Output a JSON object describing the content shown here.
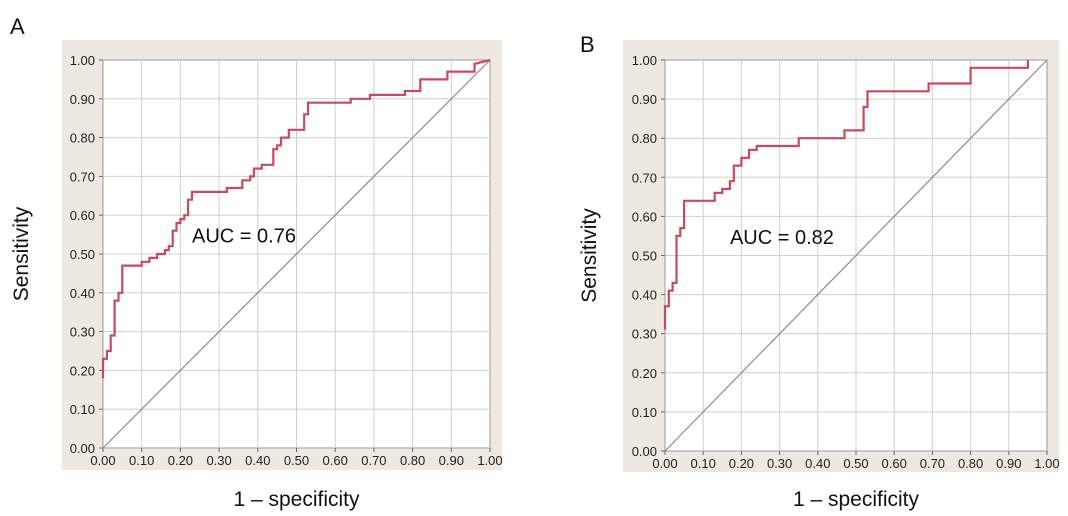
{
  "chart_data": [
    {
      "panel": "A",
      "type": "line",
      "xlabel": "1 – specificity",
      "ylabel": "Sensitivity",
      "xlim": [
        0,
        1
      ],
      "ylim": [
        0,
        1
      ],
      "x_ticks": [
        "0.00",
        "0.10",
        "0.20",
        "0.30",
        "0.40",
        "0.50",
        "0.60",
        "0.70",
        "0.80",
        "0.90",
        "1.00"
      ],
      "y_ticks": [
        "0.00",
        "0.10",
        "0.20",
        "0.30",
        "0.40",
        "0.50",
        "0.60",
        "0.70",
        "0.80",
        "0.90",
        "1.00"
      ],
      "annotation": "AUC = 0.76",
      "annotation_pos": [
        0.23,
        0.53
      ],
      "grid": true,
      "colors": {
        "roc": "#c94a5c",
        "diagonal": "#8c8c8c",
        "plot_bg": "#ffffff",
        "frame_bg": "#ede9e1",
        "grid": "#cfcfcf"
      },
      "series": [
        {
          "x": [
            0.0,
            0.0,
            0.01,
            0.01,
            0.02,
            0.02,
            0.03,
            0.03,
            0.04,
            0.04,
            0.05,
            0.05,
            0.06,
            0.06,
            0.1,
            0.1,
            0.12,
            0.12,
            0.14,
            0.14,
            0.16,
            0.16,
            0.17,
            0.17,
            0.18,
            0.18,
            0.19,
            0.19,
            0.2,
            0.2,
            0.21,
            0.21,
            0.22,
            0.22,
            0.23,
            0.23,
            0.26,
            0.26,
            0.32,
            0.32,
            0.36,
            0.36,
            0.38,
            0.38,
            0.39,
            0.39,
            0.41,
            0.41,
            0.44,
            0.44,
            0.45,
            0.45,
            0.46,
            0.46,
            0.48,
            0.48,
            0.52,
            0.52,
            0.53,
            0.53,
            0.64,
            0.64,
            0.69,
            0.69,
            0.78,
            0.78,
            0.82,
            0.82,
            0.89,
            0.89,
            0.96,
            0.96,
            1.0
          ],
          "y": [
            0.18,
            0.23,
            0.23,
            0.25,
            0.25,
            0.29,
            0.29,
            0.38,
            0.38,
            0.4,
            0.4,
            0.47,
            0.47,
            0.47,
            0.47,
            0.48,
            0.48,
            0.49,
            0.49,
            0.5,
            0.5,
            0.51,
            0.51,
            0.52,
            0.52,
            0.56,
            0.56,
            0.58,
            0.58,
            0.59,
            0.59,
            0.6,
            0.6,
            0.64,
            0.64,
            0.66,
            0.66,
            0.66,
            0.66,
            0.67,
            0.67,
            0.69,
            0.69,
            0.7,
            0.7,
            0.72,
            0.72,
            0.73,
            0.73,
            0.77,
            0.77,
            0.78,
            0.78,
            0.8,
            0.8,
            0.82,
            0.82,
            0.86,
            0.86,
            0.89,
            0.89,
            0.9,
            0.9,
            0.91,
            0.91,
            0.92,
            0.92,
            0.95,
            0.95,
            0.97,
            0.97,
            0.99,
            1.0
          ]
        }
      ]
    },
    {
      "panel": "B",
      "type": "line",
      "xlabel": "1 – specificity",
      "ylabel": "Sensitivity",
      "xlim": [
        0,
        1
      ],
      "ylim": [
        0,
        1
      ],
      "x_ticks": [
        "0.00",
        "0.10",
        "0.20",
        "0.30",
        "0.40",
        "0.50",
        "0.60",
        "0.70",
        "0.80",
        "0.90",
        "1.00"
      ],
      "y_ticks": [
        "0.00",
        "0.10",
        "0.20",
        "0.30",
        "0.40",
        "0.50",
        "0.60",
        "0.70",
        "0.80",
        "0.90",
        "1.00"
      ],
      "annotation": "AUC = 0.82",
      "annotation_pos": [
        0.17,
        0.53
      ],
      "grid": true,
      "colors": {
        "roc": "#c94a5c",
        "diagonal": "#8c8c8c",
        "plot_bg": "#ffffff",
        "frame_bg": "#ede9e1",
        "grid": "#cfcfcf"
      },
      "series": [
        {
          "x": [
            0.0,
            0.0,
            0.01,
            0.01,
            0.02,
            0.02,
            0.03,
            0.03,
            0.04,
            0.04,
            0.05,
            0.05,
            0.13,
            0.13,
            0.15,
            0.15,
            0.17,
            0.17,
            0.18,
            0.18,
            0.2,
            0.2,
            0.22,
            0.22,
            0.24,
            0.24,
            0.35,
            0.35,
            0.47,
            0.47,
            0.52,
            0.52,
            0.53,
            0.53,
            0.69,
            0.69,
            0.8,
            0.8,
            0.95,
            0.95
          ],
          "y": [
            0.31,
            0.37,
            0.37,
            0.41,
            0.41,
            0.43,
            0.43,
            0.55,
            0.55,
            0.57,
            0.57,
            0.64,
            0.64,
            0.66,
            0.66,
            0.67,
            0.67,
            0.69,
            0.69,
            0.73,
            0.73,
            0.75,
            0.75,
            0.77,
            0.77,
            0.78,
            0.78,
            0.8,
            0.8,
            0.82,
            0.82,
            0.88,
            0.88,
            0.92,
            0.92,
            0.94,
            0.94,
            0.98,
            0.98,
            1.0
          ]
        }
      ]
    }
  ],
  "labels": {
    "panel_a": "A",
    "panel_b": "B"
  }
}
